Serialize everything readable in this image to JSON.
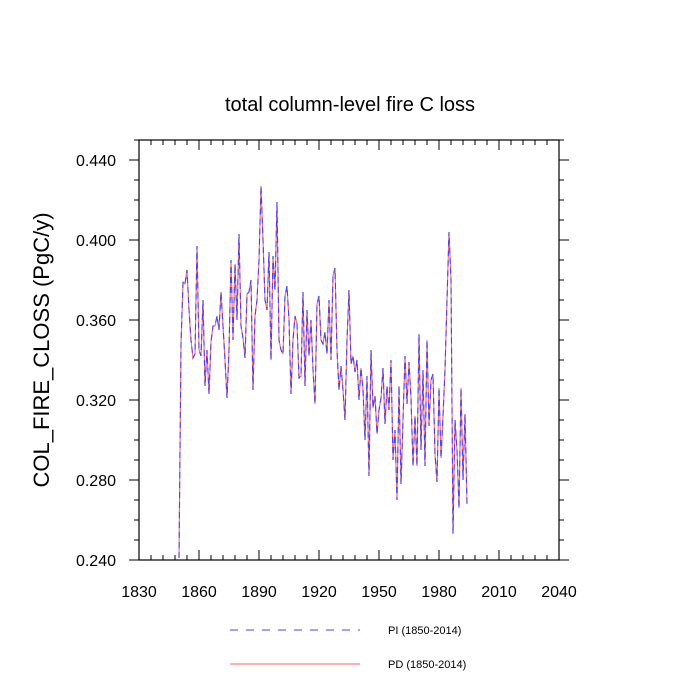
{
  "chart_data": {
    "type": "line",
    "title": "total column-level fire C loss",
    "xlabel": "",
    "ylabel": "COL_FIRE_CLOSS  (PgC/y)",
    "xlim": [
      1830,
      2040
    ],
    "ylim": [
      0.24,
      0.45
    ],
    "x_ticks": [
      1830,
      1860,
      1890,
      1920,
      1950,
      1980,
      2010,
      2040
    ],
    "y_ticks": [
      0.24,
      0.28,
      0.32,
      0.36,
      0.4,
      0.44
    ],
    "x_tick_labels": [
      "1830",
      "1860",
      "1890",
      "1920",
      "1950",
      "1980",
      "2010",
      "2040"
    ],
    "y_tick_labels": [
      "0.240",
      "0.280",
      "0.320",
      "0.360",
      "0.400",
      "0.440"
    ],
    "legend_position": "bottom-center",
    "series": [
      {
        "name": "PI (1850-2014)",
        "color": "#4444ff",
        "style": "dashed",
        "x_start": 1850,
        "values": [
          0.241,
          0.348,
          0.379,
          0.378,
          0.385,
          0.365,
          0.35,
          0.341,
          0.343,
          0.397,
          0.345,
          0.342,
          0.37,
          0.327,
          0.345,
          0.323,
          0.349,
          0.357,
          0.357,
          0.362,
          0.355,
          0.374,
          0.357,
          0.34,
          0.321,
          0.345,
          0.39,
          0.35,
          0.388,
          0.36,
          0.403,
          0.357,
          0.351,
          0.341,
          0.373,
          0.374,
          0.38,
          0.325,
          0.362,
          0.37,
          0.39,
          0.427,
          0.4,
          0.37,
          0.365,
          0.394,
          0.34,
          0.392,
          0.375,
          0.419,
          0.35,
          0.345,
          0.343,
          0.372,
          0.377,
          0.36,
          0.323,
          0.35,
          0.362,
          0.358,
          0.331,
          0.332,
          0.374,
          0.327,
          0.365,
          0.342,
          0.36,
          0.335,
          0.318,
          0.368,
          0.372,
          0.35,
          0.348,
          0.354,
          0.343,
          0.37,
          0.34,
          0.382,
          0.386,
          0.345,
          0.325,
          0.337,
          0.325,
          0.31,
          0.35,
          0.375,
          0.338,
          0.342,
          0.334,
          0.34,
          0.32,
          0.336,
          0.325,
          0.3,
          0.332,
          0.282,
          0.345,
          0.316,
          0.322,
          0.303,
          0.315,
          0.321,
          0.336,
          0.308,
          0.327,
          0.315,
          0.34,
          0.29,
          0.305,
          0.27,
          0.327,
          0.278,
          0.31,
          0.342,
          0.318,
          0.339,
          0.321,
          0.287,
          0.312,
          0.287,
          0.353,
          0.295,
          0.335,
          0.287,
          0.35,
          0.307,
          0.33,
          0.333,
          0.293,
          0.279,
          0.326,
          0.291,
          0.312,
          0.335,
          0.37,
          0.404,
          0.38,
          0.253,
          0.31,
          0.295,
          0.266,
          0.326,
          0.28,
          0.313,
          0.268
        ]
      },
      {
        "name": "PD (1850-2014)",
        "color": "#ff6666",
        "style": "solid",
        "x_start": 1850,
        "values": [
          0.241,
          0.348,
          0.379,
          0.378,
          0.385,
          0.365,
          0.35,
          0.341,
          0.343,
          0.397,
          0.345,
          0.342,
          0.37,
          0.327,
          0.345,
          0.323,
          0.349,
          0.357,
          0.357,
          0.362,
          0.355,
          0.374,
          0.357,
          0.34,
          0.321,
          0.345,
          0.39,
          0.35,
          0.388,
          0.36,
          0.403,
          0.357,
          0.351,
          0.341,
          0.373,
          0.374,
          0.38,
          0.325,
          0.362,
          0.37,
          0.39,
          0.427,
          0.4,
          0.37,
          0.365,
          0.394,
          0.34,
          0.392,
          0.375,
          0.419,
          0.35,
          0.345,
          0.343,
          0.372,
          0.377,
          0.36,
          0.323,
          0.35,
          0.362,
          0.358,
          0.331,
          0.332,
          0.374,
          0.327,
          0.365,
          0.342,
          0.36,
          0.335,
          0.318,
          0.368,
          0.372,
          0.35,
          0.348,
          0.354,
          0.343,
          0.37,
          0.34,
          0.382,
          0.386,
          0.345,
          0.325,
          0.337,
          0.325,
          0.31,
          0.35,
          0.375,
          0.338,
          0.342,
          0.334,
          0.34,
          0.32,
          0.336,
          0.325,
          0.3,
          0.332,
          0.282,
          0.345,
          0.316,
          0.322,
          0.303,
          0.315,
          0.321,
          0.336,
          0.308,
          0.327,
          0.315,
          0.34,
          0.29,
          0.305,
          0.27,
          0.327,
          0.278,
          0.31,
          0.342,
          0.318,
          0.339,
          0.321,
          0.287,
          0.312,
          0.287,
          0.353,
          0.295,
          0.335,
          0.287,
          0.35,
          0.307,
          0.33,
          0.333,
          0.293,
          0.279,
          0.326,
          0.291,
          0.312,
          0.335,
          0.37,
          0.404,
          0.38,
          0.253,
          0.31,
          0.295,
          0.266,
          0.326,
          0.28,
          0.313,
          0.268
        ]
      }
    ]
  }
}
